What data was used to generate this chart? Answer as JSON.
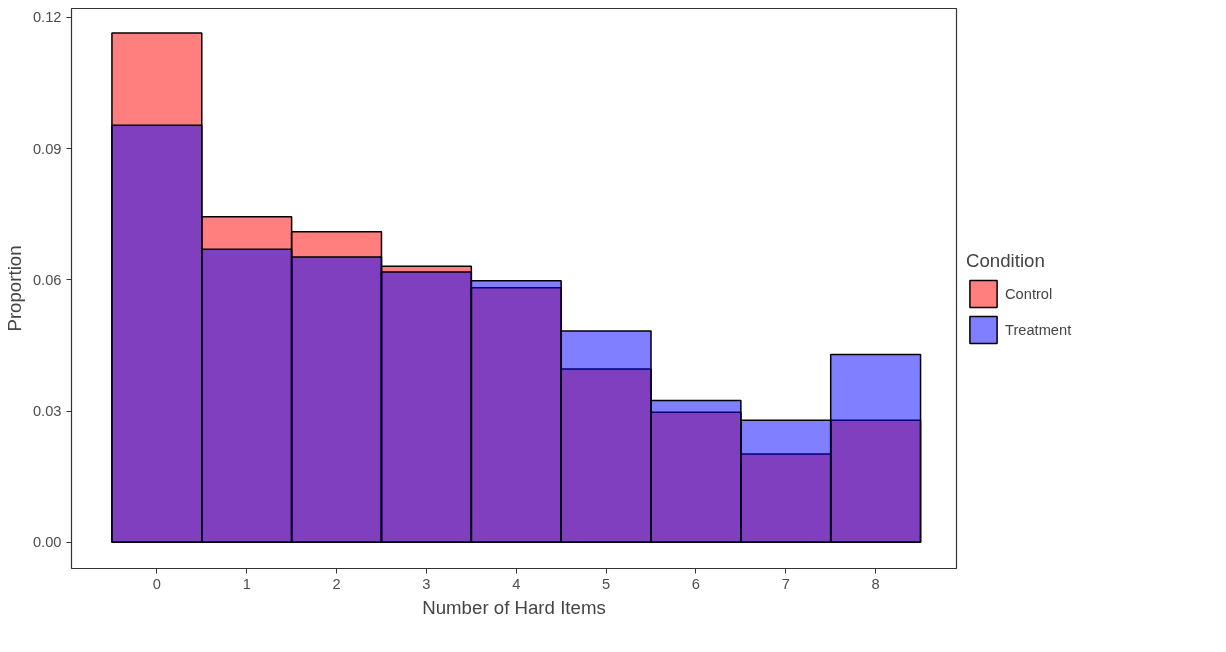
{
  "chart_data": {
    "type": "histogram",
    "xlabel": "Number of Hard Items",
    "ylabel": "Proportion",
    "legend_title": "Condition",
    "bins": [
      -0.5,
      0.5,
      1.5,
      2.5,
      3.5,
      4.5,
      5.5,
      6.5,
      7.5,
      8.5
    ],
    "series": [
      {
        "name": "Control",
        "color": "#ff0000",
        "values": [
          0.1164,
          0.0744,
          0.071,
          0.0631,
          0.0582,
          0.0396,
          0.0297,
          0.0202,
          0.0279
        ]
      },
      {
        "name": "Treatment",
        "color": "#0000ff",
        "values": [
          0.0953,
          0.067,
          0.0652,
          0.0618,
          0.0598,
          0.0483,
          0.0324,
          0.0279,
          0.0429
        ]
      }
    ],
    "xlim": [
      -0.95,
      8.9
    ],
    "ylim": [
      -0.006,
      0.122
    ],
    "xticks": [
      0,
      1,
      2,
      3,
      4,
      5,
      6,
      7,
      8
    ],
    "yticks": [
      {
        "value": 0,
        "label": "0.00"
      },
      {
        "value": 0.03,
        "label": "0.03"
      },
      {
        "value": 0.06,
        "label": "0.06"
      },
      {
        "value": 0.09,
        "label": "0.09"
      },
      {
        "value": 0.12,
        "label": "0.12"
      }
    ],
    "grid": false,
    "legend": "right"
  }
}
